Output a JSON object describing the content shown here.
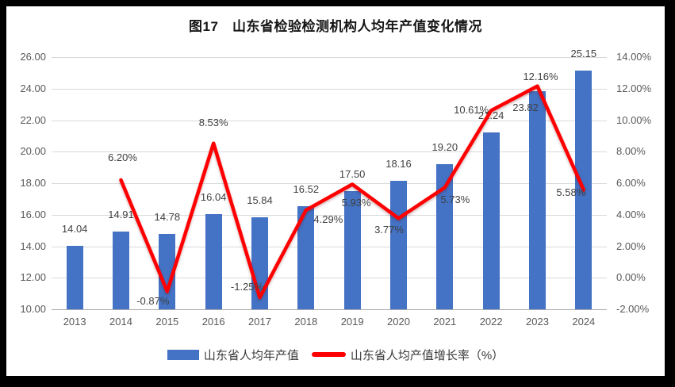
{
  "title": "图17　山东省检验检测机构人均年产值变化情况",
  "chart_data": {
    "type": "combo",
    "title": "图17　山东省检验检测机构人均年产值变化情况",
    "categories": [
      "2013",
      "2014",
      "2015",
      "2016",
      "2017",
      "2018",
      "2019",
      "2020",
      "2021",
      "2022",
      "2023",
      "2024"
    ],
    "series": [
      {
        "name": "山东省人均年产值",
        "type": "bar",
        "axis": "left",
        "color": "#4472C4",
        "values": [
          14.04,
          14.91,
          14.78,
          16.04,
          15.84,
          16.52,
          17.5,
          18.16,
          19.2,
          21.24,
          23.82,
          25.15
        ],
        "labels": [
          "14.04",
          "14.91",
          "14.78",
          "16.04",
          "15.84",
          "16.52",
          "17.50",
          "18.16",
          "19.20",
          "21.24",
          "23.82",
          "25.15"
        ]
      },
      {
        "name": "山东省人均产值增长率（%）",
        "type": "line",
        "axis": "right",
        "color": "#FF0000",
        "values": [
          null,
          6.2,
          -0.87,
          8.53,
          -1.25,
          4.29,
          5.93,
          3.77,
          5.73,
          10.61,
          12.16,
          5.58
        ],
        "labels": [
          null,
          "6.20%",
          "-0.87%",
          "8.53%",
          "-1.25%",
          "4.29%",
          "5.93%",
          "3.77%",
          "5.73%",
          "10.61%",
          "12.16%",
          "5.58%"
        ]
      }
    ],
    "left_axis": {
      "min": 10,
      "max": 26,
      "step": 2,
      "tick_labels": [
        "26.00",
        "24.00",
        "22.00",
        "20.00",
        "18.00",
        "16.00",
        "14.00",
        "12.00",
        "10.00"
      ]
    },
    "right_axis": {
      "min": -2,
      "max": 14,
      "step": 2,
      "tick_labels": [
        "14.00%",
        "12.00%",
        "10.00%",
        "8.00%",
        "6.00%",
        "4.00%",
        "2.00%",
        "0.00%",
        "-2.00%"
      ]
    },
    "grid": true,
    "legend_position": "bottom"
  },
  "legend": {
    "items": [
      {
        "label": "山东省人均年产值",
        "swatch": "bar",
        "color": "#4472C4"
      },
      {
        "label": "山东省人均产值增长率（%）",
        "swatch": "line",
        "color": "#FF0000"
      }
    ]
  },
  "colors": {
    "bar": "#4472C4",
    "line": "#FF0000",
    "grid": "#D9D9D9",
    "axis_line": "#ABABAB",
    "axis_text": "#595959",
    "data_label_text": "#404040",
    "chart_background": "#FFFFFF",
    "frame_border": "#000000"
  }
}
